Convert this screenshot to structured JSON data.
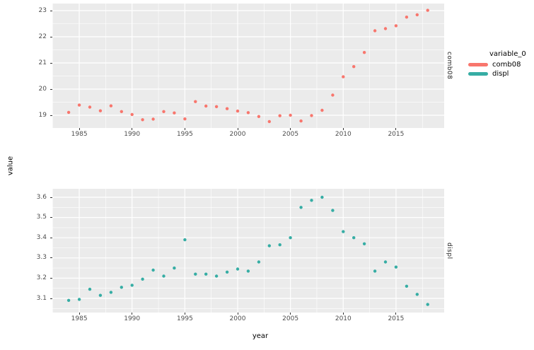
{
  "figure": {
    "background": "#ffffff",
    "panel_background": "#ebebeb",
    "grid_color": "#ffffff",
    "tick_label_color": "#4d4d4d",
    "point_radius": 2.2
  },
  "axes": {
    "x_label": "year",
    "y_label": "value"
  },
  "facets": {
    "top": "comb08",
    "bottom": "displ"
  },
  "legend": {
    "title": "variable_0",
    "entries": [
      {
        "label": "comb08",
        "color": "#F8766D"
      },
      {
        "label": "displ",
        "color": "#36ADA4"
      }
    ]
  },
  "chart_data": [
    {
      "type": "scatter",
      "facet": "comb08",
      "series_name": "comb08",
      "color": "#F8766D",
      "x": [
        1984,
        1985,
        1986,
        1987,
        1988,
        1989,
        1990,
        1991,
        1992,
        1993,
        1994,
        1995,
        1996,
        1997,
        1998,
        1999,
        2000,
        2001,
        2002,
        2003,
        2004,
        2005,
        2006,
        2007,
        2008,
        2009,
        2010,
        2011,
        2012,
        2013,
        2014,
        2015,
        2016,
        2017,
        2018
      ],
      "y": [
        19.11,
        19.39,
        19.31,
        19.17,
        19.36,
        19.14,
        19.03,
        18.83,
        18.85,
        19.14,
        19.09,
        18.86,
        19.52,
        19.35,
        19.33,
        19.25,
        19.16,
        19.1,
        18.95,
        18.76,
        18.98,
        19.0,
        18.78,
        18.99,
        19.19,
        19.77,
        20.47,
        20.86,
        21.4,
        22.23,
        22.31,
        22.42,
        22.75,
        22.84,
        23.01
      ],
      "xlim": [
        1982.45,
        2019.56
      ],
      "ylim": [
        18.513,
        23.27
      ],
      "x_ticks": [
        1985,
        1990,
        1995,
        2000,
        2005,
        2010,
        2015
      ],
      "y_ticks": [
        19,
        20,
        21,
        22,
        23
      ],
      "grid": "major+minor",
      "legend_position": "right"
    },
    {
      "type": "scatter",
      "facet": "displ",
      "series_name": "displ",
      "color": "#36ADA4",
      "x": [
        1984,
        1985,
        1986,
        1987,
        1988,
        1989,
        1990,
        1991,
        1992,
        1993,
        1994,
        1995,
        1996,
        1997,
        1998,
        1999,
        2000,
        2001,
        2002,
        2003,
        2004,
        2005,
        2006,
        2007,
        2008,
        2009,
        2010,
        2011,
        2012,
        2013,
        2014,
        2015,
        2016,
        2017,
        2018
      ],
      "y": [
        3.09,
        3.095,
        3.145,
        3.115,
        3.13,
        3.155,
        3.165,
        3.195,
        3.24,
        3.21,
        3.25,
        3.39,
        3.22,
        3.22,
        3.21,
        3.23,
        3.245,
        3.235,
        3.28,
        3.36,
        3.365,
        3.4,
        3.55,
        3.585,
        3.6,
        3.535,
        3.43,
        3.4,
        3.37,
        3.235,
        3.28,
        3.255,
        3.16,
        3.12,
        3.07
      ],
      "xlim": [
        1982.45,
        2019.56
      ],
      "ylim": [
        3.03,
        3.642
      ],
      "x_ticks": [
        1985,
        1990,
        1995,
        2000,
        2005,
        2010,
        2015
      ],
      "y_ticks": [
        3.1,
        3.2,
        3.3,
        3.4,
        3.5,
        3.6
      ],
      "grid": "major+minor",
      "legend_position": "right"
    }
  ]
}
